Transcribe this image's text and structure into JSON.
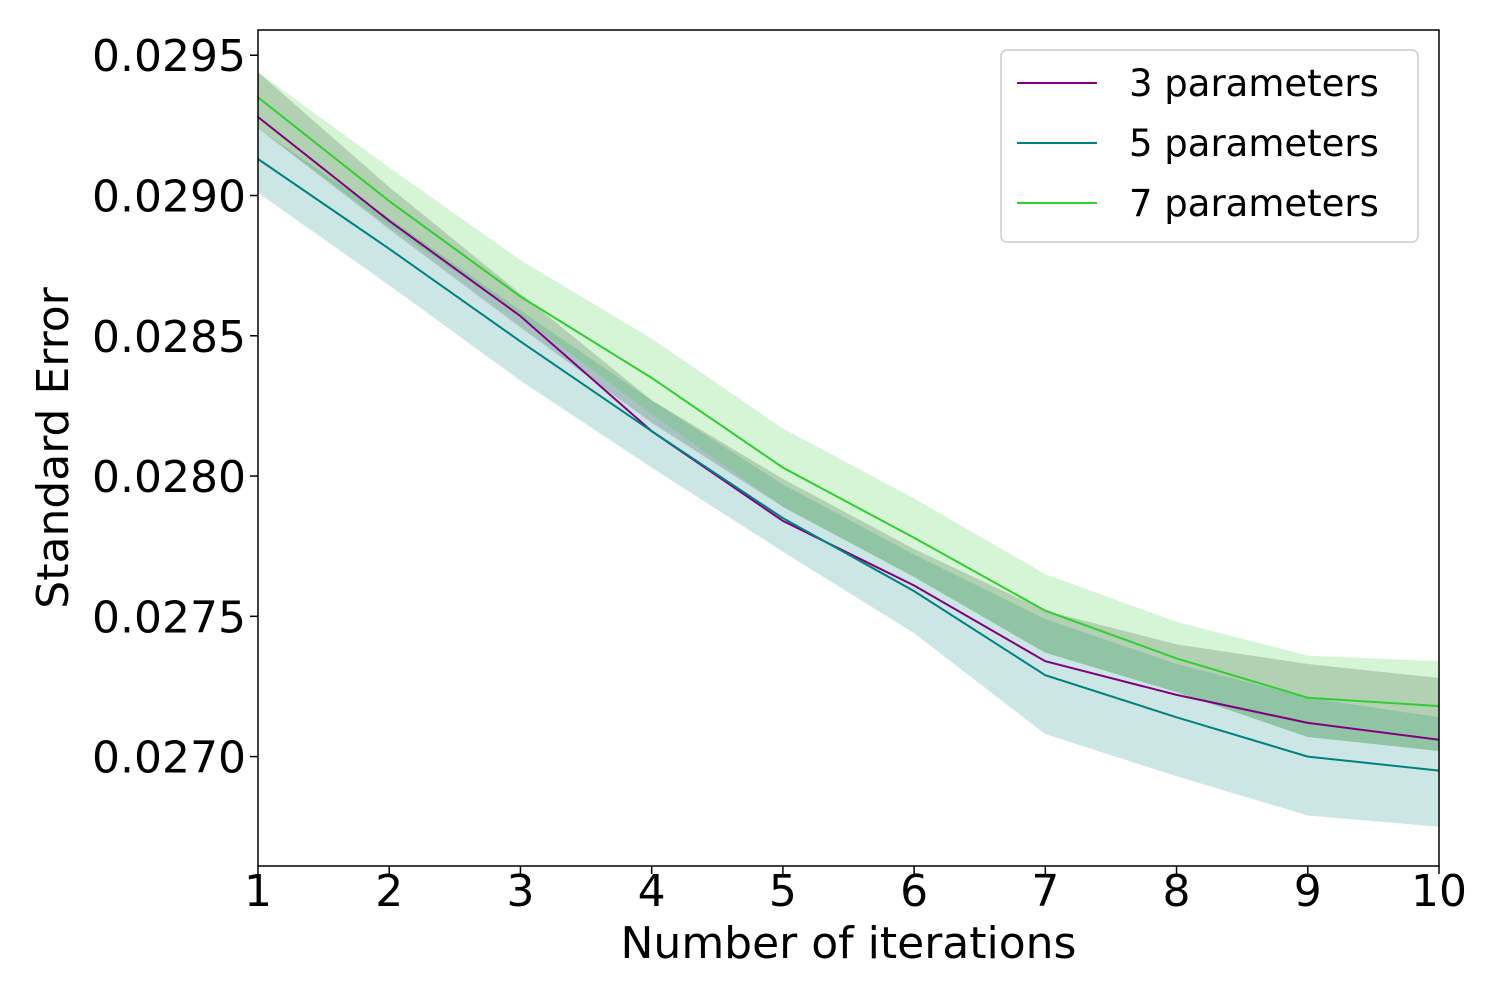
{
  "chart_data": {
    "type": "line",
    "title": "",
    "xlabel": "Number of iterations",
    "ylabel": "Standard Error",
    "x": [
      1,
      2,
      3,
      4,
      5,
      6,
      7,
      8,
      9,
      10
    ],
    "xlim": [
      1,
      10
    ],
    "ylim": [
      0.02661,
      0.02959
    ],
    "x_ticks": [
      "1",
      "2",
      "3",
      "4",
      "5",
      "6",
      "7",
      "8",
      "9",
      "10"
    ],
    "y_ticks": [
      "0.0270",
      "0.0275",
      "0.0280",
      "0.0285",
      "0.0290",
      "0.0295"
    ],
    "y_tick_values": [
      0.027,
      0.0275,
      0.028,
      0.0285,
      0.029,
      0.0295
    ],
    "grid": false,
    "legend_position": "top-right",
    "series": [
      {
        "name": "3 parameters",
        "color": "#800080",
        "band_color": "#808080",
        "values": [
          0.02928,
          0.02891,
          0.02857,
          0.02816,
          0.02784,
          0.02761,
          0.02734,
          0.02722,
          0.02712,
          0.02706
        ],
        "lower": [
          0.02924,
          0.02888,
          0.02853,
          0.02819,
          0.02789,
          0.02764,
          0.02737,
          0.02723,
          0.02707,
          0.02702
        ],
        "upper": [
          0.02944,
          0.02903,
          0.02865,
          0.02827,
          0.02799,
          0.02774,
          0.02752,
          0.0274,
          0.02733,
          0.02728
        ]
      },
      {
        "name": "5 parameters",
        "color": "#008080",
        "band_color": "#008080",
        "values": [
          0.02913,
          0.02881,
          0.02848,
          0.02816,
          0.02785,
          0.02759,
          0.02729,
          0.02714,
          0.027,
          0.02695
        ],
        "lower": [
          0.02901,
          0.02868,
          0.02834,
          0.02803,
          0.02773,
          0.02744,
          0.02708,
          0.02693,
          0.02679,
          0.02675
        ],
        "upper": [
          0.02924,
          0.02892,
          0.02859,
          0.02827,
          0.02797,
          0.02772,
          0.02749,
          0.02733,
          0.02721,
          0.02714
        ]
      },
      {
        "name": "7 parameters",
        "color": "#32cd32",
        "band_color": "#32cd32",
        "values": [
          0.02935,
          0.02898,
          0.02864,
          0.02835,
          0.02803,
          0.02778,
          0.02752,
          0.02735,
          0.02721,
          0.02718
        ],
        "lower": [
          0.02924,
          0.02889,
          0.02857,
          0.02822,
          0.02789,
          0.02764,
          0.02737,
          0.02723,
          0.02707,
          0.02702
        ],
        "upper": [
          0.02944,
          0.0291,
          0.02877,
          0.02849,
          0.02817,
          0.02792,
          0.02765,
          0.02748,
          0.02736,
          0.02734
        ]
      }
    ]
  }
}
